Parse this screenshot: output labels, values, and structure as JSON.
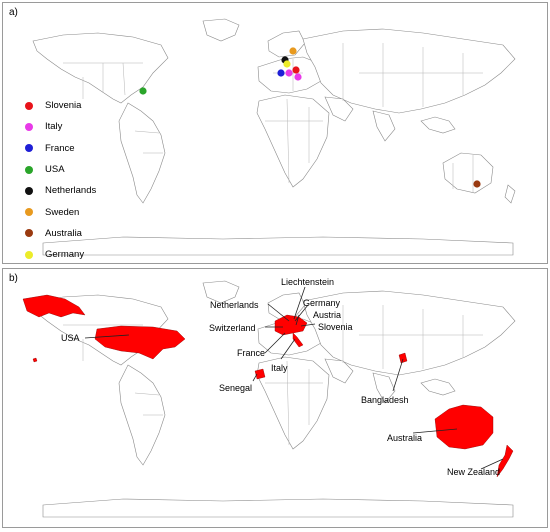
{
  "panel_a": {
    "label": "a)",
    "legend": [
      {
        "name": "Slovenia",
        "color": "#e8131a"
      },
      {
        "name": "Italy",
        "color": "#e83ae8"
      },
      {
        "name": "France",
        "color": "#1f1fd6"
      },
      {
        "name": "USA",
        "color": "#2aa52a"
      },
      {
        "name": "Netherlands",
        "color": "#111111"
      },
      {
        "name": "Sweden",
        "color": "#e89a1f"
      },
      {
        "name": "Australia",
        "color": "#9a3a10"
      },
      {
        "name": "Germany",
        "color": "#ecec2a"
      }
    ]
  },
  "panel_b": {
    "label": "b)",
    "highlight_color": "#ff0000",
    "countries": [
      "USA",
      "Netherlands",
      "Liechtenstein",
      "Germany",
      "Austria",
      "Switzerland",
      "Slovenia",
      "France",
      "Italy",
      "Senegal",
      "Bangladesh",
      "Australia",
      "New Zealand"
    ]
  }
}
